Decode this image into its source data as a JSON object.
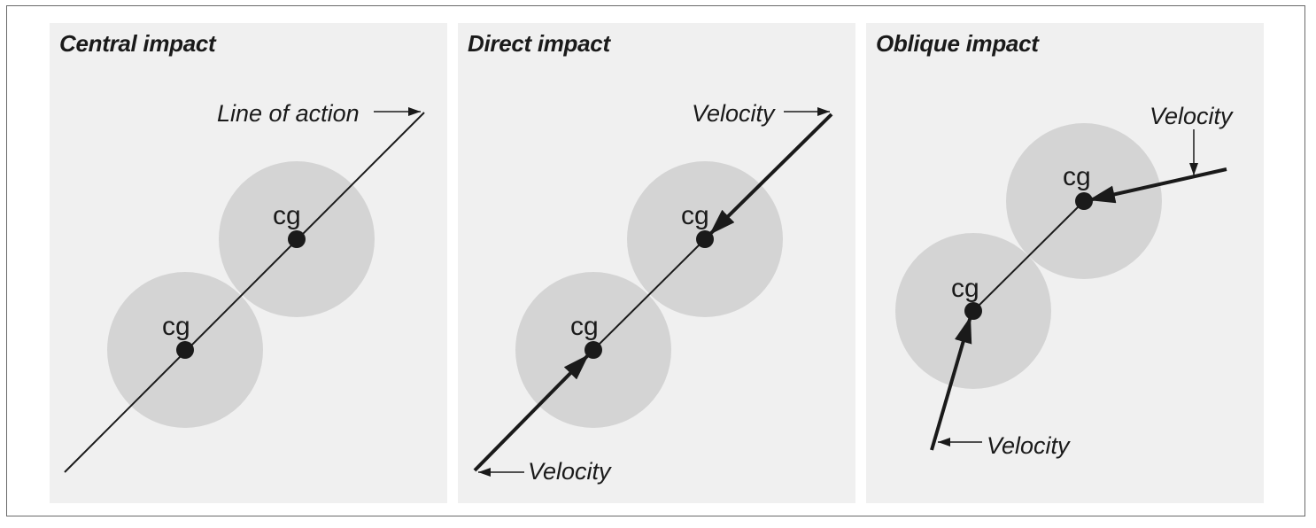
{
  "panels": [
    {
      "title": "Central impact",
      "annotation": "Line of action",
      "bodies": [
        {
          "label": "cg"
        },
        {
          "label": "cg"
        }
      ]
    },
    {
      "title": "Direct impact",
      "annotations": [
        "Velocity",
        "Velocity"
      ],
      "bodies": [
        {
          "label": "cg"
        },
        {
          "label": "cg"
        }
      ]
    },
    {
      "title": "Oblique impact",
      "annotations": [
        "Velocity",
        "Velocity"
      ],
      "bodies": [
        {
          "label": "cg"
        },
        {
          "label": "cg"
        }
      ]
    }
  ],
  "colors": {
    "panel_background": "#f0f0f0",
    "body_fill": "#d4d4d4",
    "ink": "#1a1a1a"
  }
}
